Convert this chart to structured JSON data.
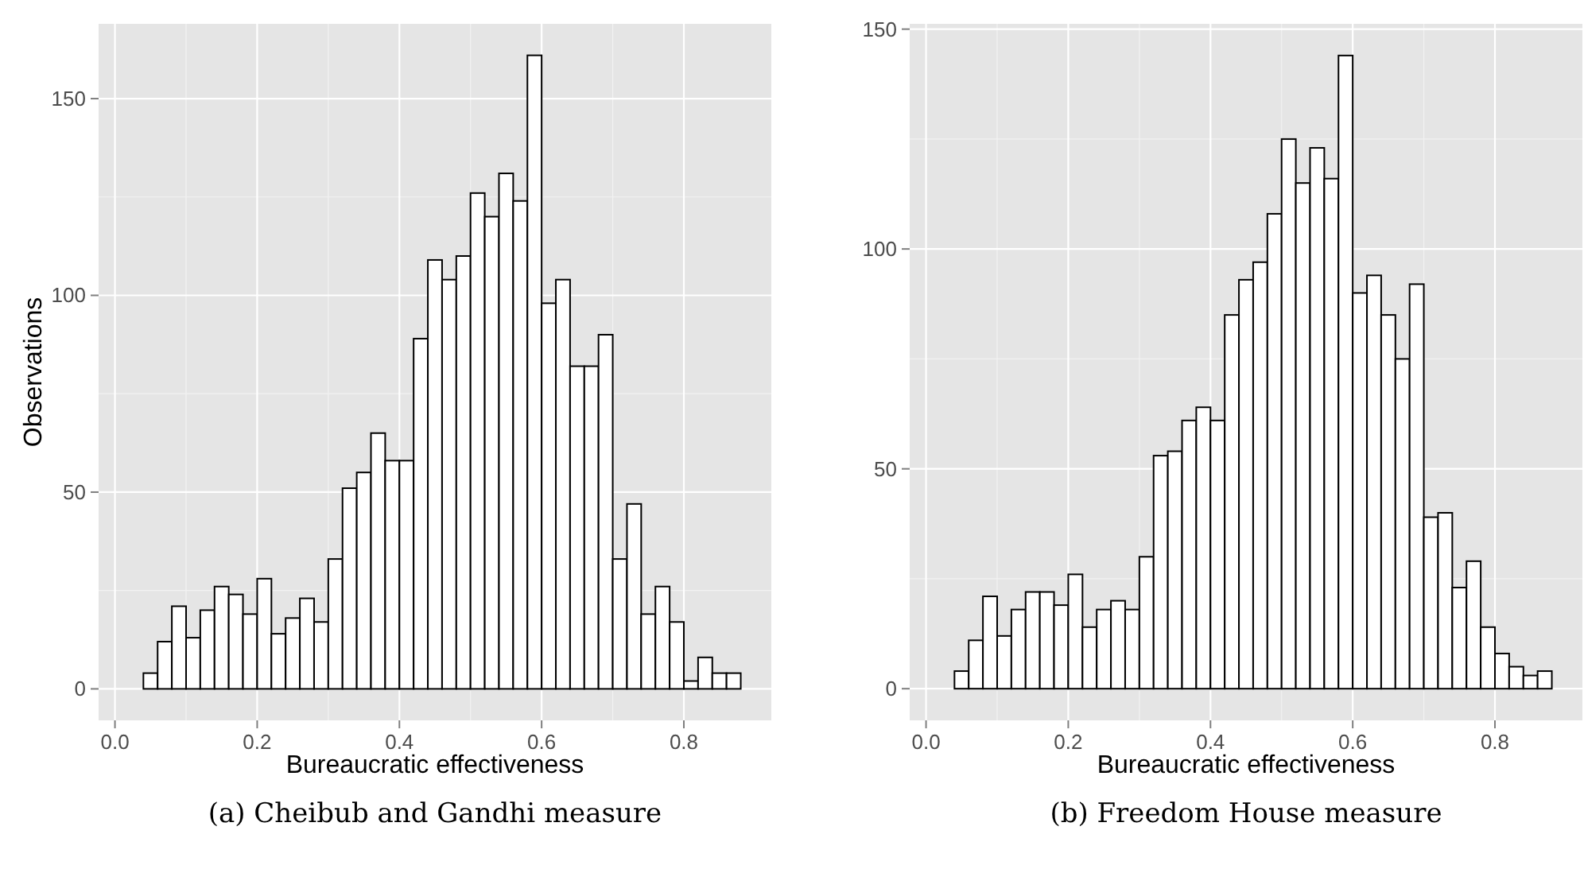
{
  "chart_data": [
    {
      "type": "histogram",
      "xlabel": "Bureaucratic effectiveness",
      "ylabel": "Observations",
      "annotations": [
        "(a) Cheibub and Gandhi measure"
      ],
      "color": "#ffffff",
      "grid": true,
      "bins": [
        0.02,
        0.04,
        0.06,
        0.08,
        0.1,
        0.12,
        0.14,
        0.16,
        0.18,
        0.2,
        0.22,
        0.24,
        0.26,
        0.28,
        0.3,
        0.32,
        0.34,
        0.36,
        0.38,
        0.4,
        0.42,
        0.44,
        0.46,
        0.48,
        0.5,
        0.52,
        0.54,
        0.56,
        0.58,
        0.6,
        0.62,
        0.64,
        0.66,
        0.68,
        0.7,
        0.72,
        0.74,
        0.76,
        0.78,
        0.8,
        0.82,
        0.84,
        0.86,
        0.88
      ],
      "values": [
        0,
        4,
        12,
        21,
        13,
        20,
        26,
        24,
        19,
        28,
        14,
        18,
        23,
        17,
        33,
        51,
        55,
        65,
        58,
        58,
        89,
        109,
        104,
        110,
        126,
        120,
        131,
        124,
        161,
        98,
        104,
        82,
        82,
        90,
        33,
        47,
        19,
        26,
        17,
        2,
        8,
        4,
        4
      ],
      "xlim": [
        -0.023,
        0.923
      ],
      "xticks": [
        {
          "value": 0,
          "label": "0.0"
        },
        0.2,
        0.4,
        0.6,
        0.8
      ],
      "ylim": [
        -8,
        169
      ],
      "yticks": [
        0,
        50,
        100,
        150
      ]
    },
    {
      "type": "histogram",
      "xlabel": "Bureaucratic effectiveness",
      "annotations": [
        "(b) Freedom House measure"
      ],
      "color": "#ffffff",
      "grid": true,
      "bins": [
        0.02,
        0.04,
        0.06,
        0.08,
        0.1,
        0.12,
        0.14,
        0.16,
        0.18,
        0.2,
        0.22,
        0.24,
        0.26,
        0.28,
        0.3,
        0.32,
        0.34,
        0.36,
        0.38,
        0.4,
        0.42,
        0.44,
        0.46,
        0.48,
        0.5,
        0.52,
        0.54,
        0.56,
        0.58,
        0.6,
        0.62,
        0.64,
        0.66,
        0.68,
        0.7,
        0.72,
        0.74,
        0.76,
        0.78,
        0.8,
        0.82,
        0.84,
        0.86,
        0.88
      ],
      "values": [
        0,
        4,
        11,
        21,
        12,
        18,
        22,
        22,
        19,
        26,
        14,
        18,
        20,
        18,
        30,
        53,
        54,
        61,
        64,
        61,
        85,
        93,
        97,
        108,
        125,
        115,
        123,
        116,
        144,
        90,
        94,
        85,
        75,
        92,
        39,
        40,
        23,
        29,
        14,
        8,
        5,
        3,
        4
      ],
      "xlim": [
        -0.023,
        0.923
      ],
      "xticks": [
        {
          "value": 0,
          "label": "0.0"
        },
        0.2,
        0.4,
        0.6,
        0.8
      ],
      "ylim": [
        -7.2,
        151.2
      ],
      "yticks": [
        0,
        50,
        100,
        150
      ]
    }
  ]
}
